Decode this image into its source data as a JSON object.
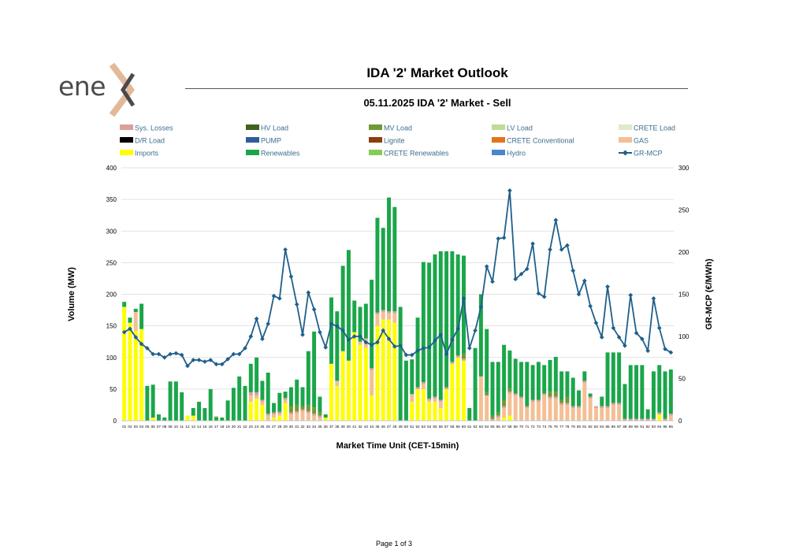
{
  "logo": {
    "text": "ene",
    "mark": "x"
  },
  "header": {
    "title": "IDA '2' Market Outlook",
    "subtitle": "05.11.2025  IDA '2' Market - Sell"
  },
  "legend": [
    {
      "name": "Sys. Losses",
      "color": "#d9a19b",
      "kind": "bar"
    },
    {
      "name": "HV Load",
      "color": "#3e6420",
      "kind": "bar"
    },
    {
      "name": "MV Load",
      "color": "#6f9a33",
      "kind": "bar"
    },
    {
      "name": "LV Load",
      "color": "#bfdc94",
      "kind": "bar"
    },
    {
      "name": "CRETE Load",
      "color": "#dcebc8",
      "kind": "bar"
    },
    {
      "name": "D/R Load",
      "color": "#000000",
      "kind": "bar"
    },
    {
      "name": "PUMP",
      "color": "#2e5c99",
      "kind": "bar"
    },
    {
      "name": "Lignite",
      "color": "#8a3f0d",
      "kind": "bar"
    },
    {
      "name": "CRETE Conventional",
      "color": "#e4741c",
      "kind": "bar"
    },
    {
      "name": "GAS",
      "color": "#f4bf94",
      "kind": "bar"
    },
    {
      "name": "Imports",
      "color": "#fefe00",
      "kind": "bar"
    },
    {
      "name": "Renewables",
      "color": "#1aa64a",
      "kind": "bar"
    },
    {
      "name": "CRETE Renewables",
      "color": "#86cc52",
      "kind": "bar"
    },
    {
      "name": "Hydro",
      "color": "#4a86d0",
      "kind": "bar"
    },
    {
      "name": "GR-MCP",
      "color": "#1f5f8b",
      "kind": "line"
    }
  ],
  "chart_data": {
    "type": "bar",
    "stacked": true,
    "title": "",
    "xlabel": "Market Time Unit (CET-15min)",
    "ylabel": "Volume (MW)",
    "y2label": "GR-MCP (€/MWh)",
    "ylim": [
      0,
      400
    ],
    "yticks": [
      0,
      50,
      100,
      150,
      200,
      250,
      300,
      350,
      400
    ],
    "y2lim": [
      0,
      300
    ],
    "y2ticks": [
      0,
      50,
      100,
      150,
      200,
      250,
      300
    ],
    "grid": true,
    "legend_position": "top",
    "categories": [
      "01",
      "02",
      "03",
      "04",
      "05",
      "06",
      "07",
      "08",
      "09",
      "10",
      "11",
      "12",
      "13",
      "14",
      "15",
      "16",
      "17",
      "18",
      "19",
      "20",
      "21",
      "22",
      "23",
      "24",
      "25",
      "26",
      "27",
      "28",
      "29",
      "30",
      "31",
      "32",
      "33",
      "34",
      "35",
      "36",
      "37",
      "38",
      "39",
      "40",
      "41",
      "42",
      "43",
      "44",
      "45",
      "46",
      "47",
      "48",
      "49",
      "50",
      "51",
      "52",
      "53",
      "54",
      "55",
      "56",
      "57",
      "58",
      "59",
      "60",
      "61",
      "62",
      "63",
      "64",
      "65",
      "66",
      "67",
      "68",
      "69",
      "70",
      "71",
      "72",
      "73",
      "74",
      "75",
      "76",
      "77",
      "78",
      "79",
      "80",
      "81",
      "82",
      "83",
      "84",
      "85",
      "86",
      "87",
      "88",
      "89",
      "90",
      "91",
      "92",
      "93",
      "94",
      "95",
      "96"
    ],
    "series": [
      {
        "name": "Imports",
        "color": "#fefe00",
        "values": [
          180,
          155,
          142,
          145,
          0,
          5,
          0,
          0,
          0,
          0,
          0,
          8,
          8,
          0,
          0,
          0,
          0,
          0,
          0,
          0,
          0,
          0,
          30,
          35,
          25,
          0,
          5,
          8,
          28,
          0,
          0,
          0,
          0,
          0,
          0,
          5,
          90,
          55,
          110,
          95,
          140,
          120,
          115,
          40,
          150,
          160,
          160,
          155,
          0,
          0,
          30,
          50,
          50,
          30,
          30,
          20,
          50,
          90,
          100,
          95,
          0,
          0,
          0,
          0,
          0,
          0,
          5,
          8,
          0,
          0,
          0,
          0,
          0,
          0,
          0,
          0,
          0,
          0,
          0,
          0,
          0,
          0,
          0,
          0,
          0,
          0,
          0,
          0,
          0,
          0,
          0,
          0,
          0,
          10,
          0,
          0
        ]
      },
      {
        "name": "GAS",
        "color": "#f4bf94",
        "values": [
          0,
          0,
          30,
          0,
          0,
          0,
          0,
          0,
          0,
          0,
          0,
          0,
          0,
          0,
          0,
          0,
          0,
          0,
          0,
          0,
          0,
          0,
          10,
          5,
          5,
          8,
          5,
          3,
          5,
          10,
          12,
          15,
          12,
          8,
          5,
          0,
          0,
          8,
          0,
          0,
          0,
          5,
          15,
          40,
          18,
          12,
          10,
          15,
          0,
          0,
          12,
          0,
          8,
          2,
          5,
          10,
          0,
          0,
          0,
          0,
          0,
          0,
          70,
          40,
          0,
          5,
          15,
          35,
          40,
          35,
          20,
          30,
          30,
          40,
          35,
          35,
          25,
          25,
          20,
          20,
          60,
          35,
          20,
          20,
          20,
          25,
          25,
          0,
          0,
          0,
          0,
          0,
          0,
          0,
          0,
          8
        ]
      },
      {
        "name": "Sys. Losses",
        "color": "#d9a19b",
        "values": [
          0,
          0,
          0,
          0,
          0,
          0,
          0,
          0,
          0,
          0,
          0,
          0,
          0,
          0,
          0,
          0,
          0,
          0,
          0,
          0,
          0,
          0,
          5,
          5,
          3,
          3,
          3,
          3,
          3,
          3,
          3,
          3,
          3,
          3,
          3,
          0,
          0,
          0,
          0,
          0,
          0,
          0,
          0,
          3,
          3,
          3,
          3,
          3,
          0,
          0,
          0,
          3,
          3,
          3,
          3,
          3,
          3,
          3,
          3,
          3,
          0,
          0,
          0,
          0,
          3,
          3,
          3,
          3,
          3,
          3,
          3,
          3,
          3,
          3,
          3,
          3,
          3,
          3,
          3,
          3,
          3,
          3,
          3,
          3,
          3,
          3,
          3,
          3,
          3,
          3,
          3,
          3,
          3,
          3,
          3,
          3
        ]
      },
      {
        "name": "MV Load",
        "color": "#6f9a33",
        "values": [
          0,
          0,
          0,
          0,
          0,
          0,
          0,
          0,
          0,
          0,
          0,
          0,
          0,
          0,
          0,
          0,
          0,
          0,
          0,
          0,
          0,
          0,
          0,
          0,
          0,
          0,
          0,
          0,
          0,
          10,
          10,
          5,
          10,
          10,
          5,
          0,
          0,
          0,
          0,
          0,
          0,
          0,
          0,
          0,
          0,
          0,
          0,
          0,
          0,
          0,
          0,
          0,
          0,
          0,
          0,
          0,
          0,
          0,
          0,
          8,
          0,
          0,
          0,
          5,
          5,
          5,
          10,
          5,
          0,
          0,
          0,
          0,
          0,
          0,
          8,
          8,
          5,
          10,
          0,
          0,
          0,
          0,
          0,
          0,
          0,
          0,
          0,
          0,
          0,
          0,
          0,
          0,
          0,
          0,
          0,
          0
        ]
      },
      {
        "name": "Renewables",
        "color": "#1aa64a",
        "values": [
          8,
          8,
          5,
          40,
          55,
          52,
          10,
          5,
          62,
          62,
          45,
          0,
          12,
          30,
          20,
          50,
          5,
          5,
          32,
          52,
          70,
          55,
          45,
          55,
          30,
          65,
          15,
          30,
          10,
          30,
          40,
          30,
          85,
          120,
          25,
          5,
          105,
          110,
          135,
          175,
          50,
          55,
          55,
          140,
          150,
          130,
          180,
          165,
          180,
          95,
          55,
          110,
          190,
          215,
          225,
          235,
          215,
          175,
          160,
          155,
          20,
          115,
          130,
          100,
          85,
          80,
          87,
          60,
          55,
          55,
          70,
          55,
          60,
          45,
          50,
          55,
          45,
          40,
          45,
          25,
          15,
          5,
          0,
          15,
          85,
          80,
          80,
          55,
          85,
          85,
          85,
          15,
          75,
          75,
          75,
          70
        ]
      },
      {
        "name": "CRETE Renewables",
        "color": "#86cc52",
        "values": [
          0,
          0,
          0,
          0,
          0,
          0,
          0,
          0,
          0,
          0,
          0,
          0,
          0,
          0,
          0,
          0,
          2,
          0,
          0,
          0,
          0,
          0,
          0,
          0,
          0,
          0,
          0,
          0,
          0,
          0,
          0,
          0,
          0,
          0,
          0,
          0,
          0,
          0,
          0,
          0,
          0,
          0,
          0,
          0,
          0,
          0,
          0,
          0,
          0,
          0,
          0,
          0,
          0,
          0,
          0,
          0,
          0,
          0,
          0,
          0,
          0,
          0,
          0,
          0,
          0,
          0,
          0,
          0,
          0,
          0,
          0,
          0,
          0,
          0,
          0,
          0,
          0,
          0,
          0,
          0,
          0,
          0,
          0,
          0,
          0,
          0,
          0,
          0,
          0,
          0,
          0,
          0,
          0,
          0,
          0,
          0
        ]
      },
      {
        "name": "Hydro",
        "color": "#4a86d0",
        "values": [
          0,
          0,
          0,
          0,
          0,
          0,
          0,
          0,
          0,
          0,
          0,
          0,
          0,
          0,
          0,
          0,
          0,
          0,
          0,
          0,
          0,
          0,
          0,
          0,
          0,
          0,
          0,
          0,
          0,
          0,
          0,
          0,
          0,
          0,
          0,
          0,
          0,
          0,
          0,
          0,
          0,
          0,
          0,
          0,
          0,
          0,
          0,
          0,
          0,
          0,
          0,
          0,
          0,
          0,
          0,
          0,
          0,
          0,
          0,
          0,
          0,
          0,
          0,
          0,
          0,
          0,
          0,
          0,
          0,
          0,
          0,
          0,
          0,
          0,
          0,
          0,
          0,
          0,
          0,
          0,
          0,
          0,
          0,
          0,
          0,
          0,
          0,
          0,
          0,
          0,
          0,
          0,
          0,
          0,
          0,
          0
        ]
      }
    ],
    "line": {
      "name": "GR-MCP",
      "color": "#1f5f8b",
      "axis": "right",
      "values": [
        105,
        109,
        99,
        91,
        86,
        79,
        79,
        75,
        79,
        80,
        78,
        65,
        72,
        72,
        70,
        72,
        67,
        67,
        73,
        79,
        79,
        86,
        100,
        121,
        97,
        115,
        148,
        145,
        203,
        171,
        138,
        102,
        152,
        132,
        105,
        87,
        115,
        112,
        107,
        96,
        100,
        100,
        93,
        90,
        93,
        107,
        97,
        88,
        89,
        78,
        78,
        83,
        86,
        87,
        95,
        102,
        79,
        96,
        109,
        145,
        86,
        107,
        135,
        183,
        165,
        216,
        217,
        273,
        168,
        174,
        180,
        210,
        151,
        147,
        203,
        238,
        203,
        208,
        178,
        150,
        166,
        136,
        116,
        99,
        159,
        110,
        99,
        89,
        149,
        104,
        97,
        83,
        145,
        110,
        85,
        81
      ]
    }
  },
  "footer": {
    "page": "Page 1 of 3"
  }
}
